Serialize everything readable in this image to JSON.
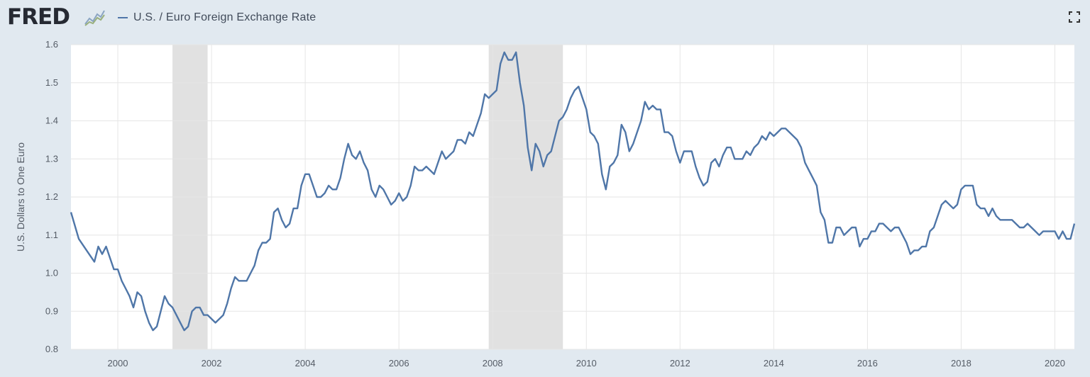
{
  "header": {
    "logo_text": "FRED",
    "expand_icon": "fullscreen-icon"
  },
  "colors": {
    "line": "#4f76a8",
    "recession": "#e1e1e1",
    "plot_bg": "#ffffff",
    "page_bg": "#e1e9f0",
    "grid": "#e6e6e6"
  },
  "chart_data": {
    "type": "line",
    "title": "",
    "xlabel": "",
    "ylabel": "U.S. Dollars to One Euro",
    "ylim": [
      0.8,
      1.6
    ],
    "xlim": [
      "1999-01",
      "2020-06"
    ],
    "yticks": [
      "0.8",
      "0.9",
      "1.0",
      "1.1",
      "1.2",
      "1.3",
      "1.4",
      "1.5",
      "1.6"
    ],
    "xticks": [
      "2000",
      "2002",
      "2004",
      "2006",
      "2008",
      "2010",
      "2012",
      "2014",
      "2016",
      "2018",
      "2020"
    ],
    "grid": true,
    "legend_position": "top-left",
    "recessions": [
      {
        "start": "2001-03",
        "end": "2001-11"
      },
      {
        "start": "2007-12",
        "end": "2009-06"
      }
    ],
    "series": [
      {
        "name": "U.S. / Euro Foreign Exchange Rate",
        "points": [
          [
            "1999-01",
            1.16
          ],
          [
            "1999-03",
            1.09
          ],
          [
            "1999-05",
            1.06
          ],
          [
            "1999-07",
            1.03
          ],
          [
            "1999-08",
            1.07
          ],
          [
            "1999-09",
            1.05
          ],
          [
            "1999-10",
            1.07
          ],
          [
            "1999-11",
            1.04
          ],
          [
            "1999-12",
            1.01
          ],
          [
            "2000-01",
            1.01
          ],
          [
            "2000-02",
            0.98
          ],
          [
            "2000-03",
            0.96
          ],
          [
            "2000-04",
            0.94
          ],
          [
            "2000-05",
            0.91
          ],
          [
            "2000-06",
            0.95
          ],
          [
            "2000-07",
            0.94
          ],
          [
            "2000-08",
            0.9
          ],
          [
            "2000-09",
            0.87
          ],
          [
            "2000-10",
            0.85
          ],
          [
            "2000-11",
            0.86
          ],
          [
            "2000-12",
            0.9
          ],
          [
            "2001-01",
            0.94
          ],
          [
            "2001-02",
            0.92
          ],
          [
            "2001-03",
            0.91
          ],
          [
            "2001-04",
            0.89
          ],
          [
            "2001-05",
            0.87
          ],
          [
            "2001-06",
            0.85
          ],
          [
            "2001-07",
            0.86
          ],
          [
            "2001-08",
            0.9
          ],
          [
            "2001-09",
            0.91
          ],
          [
            "2001-10",
            0.91
          ],
          [
            "2001-11",
            0.89
          ],
          [
            "2001-12",
            0.89
          ],
          [
            "2002-01",
            0.88
          ],
          [
            "2002-02",
            0.87
          ],
          [
            "2002-03",
            0.88
          ],
          [
            "2002-04",
            0.89
          ],
          [
            "2002-05",
            0.92
          ],
          [
            "2002-06",
            0.96
          ],
          [
            "2002-07",
            0.99
          ],
          [
            "2002-08",
            0.98
          ],
          [
            "2002-09",
            0.98
          ],
          [
            "2002-10",
            0.98
          ],
          [
            "2002-11",
            1.0
          ],
          [
            "2002-12",
            1.02
          ],
          [
            "2003-01",
            1.06
          ],
          [
            "2003-02",
            1.08
          ],
          [
            "2003-03",
            1.08
          ],
          [
            "2003-04",
            1.09
          ],
          [
            "2003-05",
            1.16
          ],
          [
            "2003-06",
            1.17
          ],
          [
            "2003-07",
            1.14
          ],
          [
            "2003-08",
            1.12
          ],
          [
            "2003-09",
            1.13
          ],
          [
            "2003-10",
            1.17
          ],
          [
            "2003-11",
            1.17
          ],
          [
            "2003-12",
            1.23
          ],
          [
            "2004-01",
            1.26
          ],
          [
            "2004-02",
            1.26
          ],
          [
            "2004-03",
            1.23
          ],
          [
            "2004-04",
            1.2
          ],
          [
            "2004-05",
            1.2
          ],
          [
            "2004-06",
            1.21
          ],
          [
            "2004-07",
            1.23
          ],
          [
            "2004-08",
            1.22
          ],
          [
            "2004-09",
            1.22
          ],
          [
            "2004-10",
            1.25
          ],
          [
            "2004-11",
            1.3
          ],
          [
            "2004-12",
            1.34
          ],
          [
            "2005-01",
            1.31
          ],
          [
            "2005-02",
            1.3
          ],
          [
            "2005-03",
            1.32
          ],
          [
            "2005-04",
            1.29
          ],
          [
            "2005-05",
            1.27
          ],
          [
            "2005-06",
            1.22
          ],
          [
            "2005-07",
            1.2
          ],
          [
            "2005-08",
            1.23
          ],
          [
            "2005-09",
            1.22
          ],
          [
            "2005-10",
            1.2
          ],
          [
            "2005-11",
            1.18
          ],
          [
            "2005-12",
            1.19
          ],
          [
            "2006-01",
            1.21
          ],
          [
            "2006-02",
            1.19
          ],
          [
            "2006-03",
            1.2
          ],
          [
            "2006-04",
            1.23
          ],
          [
            "2006-05",
            1.28
          ],
          [
            "2006-06",
            1.27
          ],
          [
            "2006-07",
            1.27
          ],
          [
            "2006-08",
            1.28
          ],
          [
            "2006-09",
            1.27
          ],
          [
            "2006-10",
            1.26
          ],
          [
            "2006-11",
            1.29
          ],
          [
            "2006-12",
            1.32
          ],
          [
            "2007-01",
            1.3
          ],
          [
            "2007-02",
            1.31
          ],
          [
            "2007-03",
            1.32
          ],
          [
            "2007-04",
            1.35
          ],
          [
            "2007-05",
            1.35
          ],
          [
            "2007-06",
            1.34
          ],
          [
            "2007-07",
            1.37
          ],
          [
            "2007-08",
            1.36
          ],
          [
            "2007-09",
            1.39
          ],
          [
            "2007-10",
            1.42
          ],
          [
            "2007-11",
            1.47
          ],
          [
            "2007-12",
            1.46
          ],
          [
            "2008-01",
            1.47
          ],
          [
            "2008-02",
            1.48
          ],
          [
            "2008-03",
            1.55
          ],
          [
            "2008-04",
            1.58
          ],
          [
            "2008-05",
            1.56
          ],
          [
            "2008-06",
            1.56
          ],
          [
            "2008-07",
            1.58
          ],
          [
            "2008-08",
            1.5
          ],
          [
            "2008-09",
            1.44
          ],
          [
            "2008-10",
            1.33
          ],
          [
            "2008-11",
            1.27
          ],
          [
            "2008-12",
            1.34
          ],
          [
            "2009-01",
            1.32
          ],
          [
            "2009-02",
            1.28
          ],
          [
            "2009-03",
            1.31
          ],
          [
            "2009-04",
            1.32
          ],
          [
            "2009-05",
            1.36
          ],
          [
            "2009-06",
            1.4
          ],
          [
            "2009-07",
            1.41
          ],
          [
            "2009-08",
            1.43
          ],
          [
            "2009-09",
            1.46
          ],
          [
            "2009-10",
            1.48
          ],
          [
            "2009-11",
            1.49
          ],
          [
            "2009-12",
            1.46
          ],
          [
            "2010-01",
            1.43
          ],
          [
            "2010-02",
            1.37
          ],
          [
            "2010-03",
            1.36
          ],
          [
            "2010-04",
            1.34
          ],
          [
            "2010-05",
            1.26
          ],
          [
            "2010-06",
            1.22
          ],
          [
            "2010-07",
            1.28
          ],
          [
            "2010-08",
            1.29
          ],
          [
            "2010-09",
            1.31
          ],
          [
            "2010-10",
            1.39
          ],
          [
            "2010-11",
            1.37
          ],
          [
            "2010-12",
            1.32
          ],
          [
            "2011-01",
            1.34
          ],
          [
            "2011-02",
            1.37
          ],
          [
            "2011-03",
            1.4
          ],
          [
            "2011-04",
            1.45
          ],
          [
            "2011-05",
            1.43
          ],
          [
            "2011-06",
            1.44
          ],
          [
            "2011-07",
            1.43
          ],
          [
            "2011-08",
            1.43
          ],
          [
            "2011-09",
            1.37
          ],
          [
            "2011-10",
            1.37
          ],
          [
            "2011-11",
            1.36
          ],
          [
            "2011-12",
            1.32
          ],
          [
            "2012-01",
            1.29
          ],
          [
            "2012-02",
            1.32
          ],
          [
            "2012-03",
            1.32
          ],
          [
            "2012-04",
            1.32
          ],
          [
            "2012-05",
            1.28
          ],
          [
            "2012-06",
            1.25
          ],
          [
            "2012-07",
            1.23
          ],
          [
            "2012-08",
            1.24
          ],
          [
            "2012-09",
            1.29
          ],
          [
            "2012-10",
            1.3
          ],
          [
            "2012-11",
            1.28
          ],
          [
            "2012-12",
            1.31
          ],
          [
            "2013-01",
            1.33
          ],
          [
            "2013-02",
            1.33
          ],
          [
            "2013-03",
            1.3
          ],
          [
            "2013-04",
            1.3
          ],
          [
            "2013-05",
            1.3
          ],
          [
            "2013-06",
            1.32
          ],
          [
            "2013-07",
            1.31
          ],
          [
            "2013-08",
            1.33
          ],
          [
            "2013-09",
            1.34
          ],
          [
            "2013-10",
            1.36
          ],
          [
            "2013-11",
            1.35
          ],
          [
            "2013-12",
            1.37
          ],
          [
            "2014-01",
            1.36
          ],
          [
            "2014-02",
            1.37
          ],
          [
            "2014-03",
            1.38
          ],
          [
            "2014-04",
            1.38
          ],
          [
            "2014-05",
            1.37
          ],
          [
            "2014-06",
            1.36
          ],
          [
            "2014-07",
            1.35
          ],
          [
            "2014-08",
            1.33
          ],
          [
            "2014-09",
            1.29
          ],
          [
            "2014-10",
            1.27
          ],
          [
            "2014-11",
            1.25
          ],
          [
            "2014-12",
            1.23
          ],
          [
            "2015-01",
            1.16
          ],
          [
            "2015-02",
            1.14
          ],
          [
            "2015-03",
            1.08
          ],
          [
            "2015-04",
            1.08
          ],
          [
            "2015-05",
            1.12
          ],
          [
            "2015-06",
            1.12
          ],
          [
            "2015-07",
            1.1
          ],
          [
            "2015-08",
            1.11
          ],
          [
            "2015-09",
            1.12
          ],
          [
            "2015-10",
            1.12
          ],
          [
            "2015-11",
            1.07
          ],
          [
            "2015-12",
            1.09
          ],
          [
            "2016-01",
            1.09
          ],
          [
            "2016-02",
            1.11
          ],
          [
            "2016-03",
            1.11
          ],
          [
            "2016-04",
            1.13
          ],
          [
            "2016-05",
            1.13
          ],
          [
            "2016-06",
            1.12
          ],
          [
            "2016-07",
            1.11
          ],
          [
            "2016-08",
            1.12
          ],
          [
            "2016-09",
            1.12
          ],
          [
            "2016-10",
            1.1
          ],
          [
            "2016-11",
            1.08
          ],
          [
            "2016-12",
            1.05
          ],
          [
            "2017-01",
            1.06
          ],
          [
            "2017-02",
            1.06
          ],
          [
            "2017-03",
            1.07
          ],
          [
            "2017-04",
            1.07
          ],
          [
            "2017-05",
            1.11
          ],
          [
            "2017-06",
            1.12
          ],
          [
            "2017-07",
            1.15
          ],
          [
            "2017-08",
            1.18
          ],
          [
            "2017-09",
            1.19
          ],
          [
            "2017-10",
            1.18
          ],
          [
            "2017-11",
            1.17
          ],
          [
            "2017-12",
            1.18
          ],
          [
            "2018-01",
            1.22
          ],
          [
            "2018-02",
            1.23
          ],
          [
            "2018-03",
            1.23
          ],
          [
            "2018-04",
            1.23
          ],
          [
            "2018-05",
            1.18
          ],
          [
            "2018-06",
            1.17
          ],
          [
            "2018-07",
            1.17
          ],
          [
            "2018-08",
            1.15
          ],
          [
            "2018-09",
            1.17
          ],
          [
            "2018-10",
            1.15
          ],
          [
            "2018-11",
            1.14
          ],
          [
            "2018-12",
            1.14
          ],
          [
            "2019-01",
            1.14
          ],
          [
            "2019-02",
            1.14
          ],
          [
            "2019-03",
            1.13
          ],
          [
            "2019-04",
            1.12
          ],
          [
            "2019-05",
            1.12
          ],
          [
            "2019-06",
            1.13
          ],
          [
            "2019-07",
            1.12
          ],
          [
            "2019-08",
            1.11
          ],
          [
            "2019-09",
            1.1
          ],
          [
            "2019-10",
            1.11
          ],
          [
            "2019-11",
            1.11
          ],
          [
            "2019-12",
            1.11
          ],
          [
            "2020-01",
            1.11
          ],
          [
            "2020-02",
            1.09
          ],
          [
            "2020-03",
            1.11
          ],
          [
            "2020-04",
            1.09
          ],
          [
            "2020-05",
            1.09
          ],
          [
            "2020-06",
            1.13
          ]
        ]
      }
    ]
  }
}
